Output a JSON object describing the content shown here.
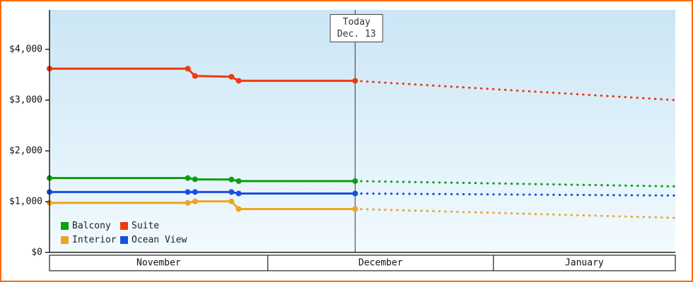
{
  "frame": {
    "border_color": "#ff6a00"
  },
  "chart_data": {
    "type": "line",
    "today": {
      "label_line1": "Today",
      "label_line2": "Dec. 13",
      "day": 42
    },
    "ylim": [
      0,
      4778
    ],
    "yticks": [
      {
        "value": 0,
        "label": "$0"
      },
      {
        "value": 1000,
        "label": "$1,000"
      },
      {
        "value": 2000,
        "label": "$2,000"
      },
      {
        "value": 3000,
        "label": "$3,000"
      },
      {
        "value": 4000,
        "label": "$4,000"
      }
    ],
    "x_domain": [
      0,
      86
    ],
    "months": [
      {
        "label": "November",
        "start": 0,
        "end": 30
      },
      {
        "label": "December",
        "start": 30,
        "end": 61
      },
      {
        "label": "January",
        "start": 61,
        "end": 86
      }
    ],
    "series": [
      {
        "name": "Suite",
        "color": "#ee3911",
        "points": [
          [
            0,
            3620
          ],
          [
            19,
            3620
          ],
          [
            20,
            3475
          ],
          [
            25,
            3460
          ],
          [
            26,
            3380
          ],
          [
            42,
            3380
          ]
        ],
        "markers": [
          0,
          19,
          20,
          25,
          26,
          42
        ],
        "forecast": [
          [
            42,
            3380
          ],
          [
            86,
            3000
          ]
        ]
      },
      {
        "name": "Balcony",
        "color": "#0ca00c",
        "points": [
          [
            0,
            1465
          ],
          [
            19,
            1465
          ],
          [
            20,
            1440
          ],
          [
            25,
            1435
          ],
          [
            26,
            1405
          ],
          [
            42,
            1405
          ]
        ],
        "markers": [
          0,
          19,
          20,
          25,
          26,
          42
        ],
        "forecast": [
          [
            42,
            1405
          ],
          [
            86,
            1300
          ]
        ]
      },
      {
        "name": "Ocean View",
        "color": "#1a4fe0",
        "points": [
          [
            0,
            1190
          ],
          [
            19,
            1190
          ],
          [
            20,
            1190
          ],
          [
            25,
            1190
          ],
          [
            26,
            1160
          ],
          [
            42,
            1160
          ]
        ],
        "markers": [
          0,
          19,
          20,
          25,
          26,
          42
        ],
        "forecast": [
          [
            42,
            1160
          ],
          [
            86,
            1120
          ]
        ]
      },
      {
        "name": "Interior",
        "color": "#efa420",
        "points": [
          [
            0,
            975
          ],
          [
            19,
            975
          ],
          [
            20,
            1005
          ],
          [
            25,
            1005
          ],
          [
            26,
            855
          ],
          [
            42,
            855
          ]
        ],
        "markers": [
          0,
          19,
          20,
          25,
          26,
          42
        ],
        "forecast": [
          [
            42,
            855
          ],
          [
            86,
            680
          ]
        ]
      }
    ],
    "legend": [
      [
        "Balcony",
        "Suite"
      ],
      [
        "Interior",
        "Ocean View"
      ]
    ],
    "background_gradient": {
      "top": "#cbe6f5",
      "bottom": "#f2fafe"
    },
    "axis_color": "#222222",
    "today_line_color": "#333333"
  }
}
